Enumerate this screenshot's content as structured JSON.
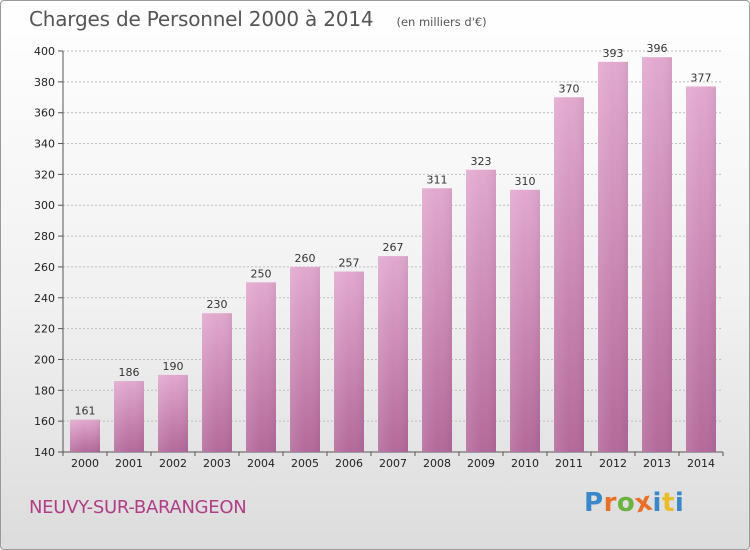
{
  "header": {
    "title": "Charges de Personnel 2000 à 2014",
    "subtitle": "(en milliers d'€)"
  },
  "footer": {
    "commune": "NEUVY-SUR-BARANGEON",
    "logo": "Proxiti",
    "logo_colors": [
      "#3a88c9",
      "#e8702a",
      "#6bb33e",
      "#e8702a",
      "#3a88c9",
      "#e8bd2a",
      "#3a88c9"
    ]
  },
  "chart_data": {
    "type": "bar",
    "title": "Charges de Personnel 2000 à 2014",
    "subtitle": "(en milliers d'€)",
    "xlabel": "",
    "ylabel": "",
    "categories": [
      "2000",
      "2001",
      "2002",
      "2003",
      "2004",
      "2005",
      "2006",
      "2007",
      "2008",
      "2009",
      "2010",
      "2011",
      "2012",
      "2013",
      "2014"
    ],
    "values": [
      161,
      186,
      190,
      230,
      250,
      260,
      257,
      267,
      311,
      323,
      310,
      370,
      393,
      396,
      377
    ],
    "ylim": [
      140,
      400
    ],
    "yticks": [
      140,
      160,
      180,
      200,
      220,
      240,
      260,
      280,
      300,
      320,
      340,
      360,
      380,
      400
    ],
    "grid": true,
    "legend": "none",
    "bar_color": "#d98fbe"
  }
}
